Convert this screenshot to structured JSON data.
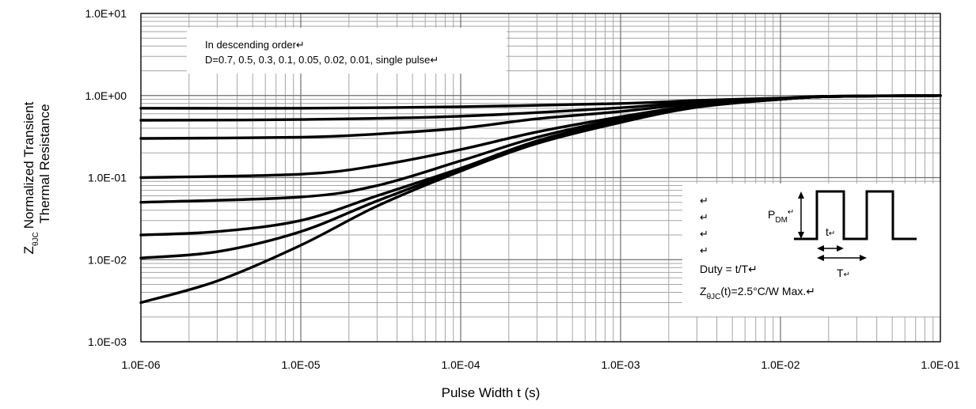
{
  "chart_data": {
    "type": "line",
    "x_scale": "log",
    "y_scale": "log",
    "xlim": [
      1e-06,
      0.1
    ],
    "ylim": [
      0.001,
      10
    ],
    "grid": true,
    "xlabel": "Pulse Width t (s)",
    "ylabel_prefix": "Z",
    "ylabel_sub": "θJC",
    "ylabel_line1": "Normalized Transient",
    "ylabel_line2": "Thermal Resistance",
    "x_ticks": [
      "1.0E-06",
      "1.0E-05",
      "1.0E-04",
      "1.0E-03",
      "1.0E-02",
      "1.0E-01"
    ],
    "y_ticks": [
      "1.0E-03",
      "1.0E-02",
      "1.0E-01",
      "1.0E+00",
      "1.0E+01"
    ],
    "legend": {
      "placement": "top-left",
      "line1": "In descending order↵",
      "line2": "D=0.7, 0.5, 0.3, 0.1, 0.05, 0.02, 0.01, single pulse↵"
    },
    "series": [
      {
        "D": 0.7,
        "x": [
          1e-06,
          1e-05,
          0.0001,
          0.001,
          0.003,
          0.01,
          0.02,
          0.1
        ],
        "y": [
          0.7,
          0.7,
          0.73,
          0.8,
          0.87,
          0.93,
          0.98,
          1.0
        ]
      },
      {
        "D": 0.5,
        "x": [
          1e-06,
          1e-05,
          0.0001,
          0.001,
          0.003,
          0.01,
          0.02,
          0.1
        ],
        "y": [
          0.5,
          0.51,
          0.56,
          0.71,
          0.84,
          0.92,
          0.98,
          1.0
        ]
      },
      {
        "D": 0.3,
        "x": [
          1e-06,
          1e-05,
          3e-05,
          0.0001,
          0.0003,
          0.001,
          0.003,
          0.01,
          0.02,
          0.1
        ],
        "y": [
          0.3,
          0.31,
          0.34,
          0.4,
          0.52,
          0.64,
          0.8,
          0.91,
          0.97,
          1.0
        ]
      },
      {
        "D": 0.1,
        "x": [
          1e-06,
          1e-05,
          3e-05,
          0.0001,
          0.0003,
          0.001,
          0.003,
          0.01,
          0.02,
          0.1
        ],
        "y": [
          0.1,
          0.11,
          0.14,
          0.22,
          0.36,
          0.55,
          0.76,
          0.9,
          0.97,
          1.0
        ]
      },
      {
        "D": 0.05,
        "x": [
          1e-06,
          1e-05,
          3e-05,
          0.0001,
          0.0003,
          0.001,
          0.003,
          0.01,
          0.02,
          0.1
        ],
        "y": [
          0.05,
          0.058,
          0.08,
          0.16,
          0.31,
          0.52,
          0.75,
          0.9,
          0.97,
          1.0
        ]
      },
      {
        "D": 0.02,
        "x": [
          1e-06,
          3e-06,
          1e-05,
          3e-05,
          0.0001,
          0.0003,
          0.001,
          0.003,
          0.01,
          0.02,
          0.1
        ],
        "y": [
          0.02,
          0.022,
          0.03,
          0.06,
          0.13,
          0.28,
          0.5,
          0.74,
          0.9,
          0.97,
          1.0
        ]
      },
      {
        "D": 0.01,
        "x": [
          1e-06,
          3e-06,
          1e-05,
          3e-05,
          0.0001,
          0.0003,
          0.001,
          0.003,
          0.01,
          0.02,
          0.1
        ],
        "y": [
          0.0105,
          0.0125,
          0.022,
          0.052,
          0.125,
          0.27,
          0.49,
          0.73,
          0.9,
          0.97,
          1.0
        ]
      },
      {
        "D": "single pulse",
        "x": [
          1e-06,
          3e-06,
          1e-05,
          3e-05,
          0.0001,
          0.0003,
          0.001,
          0.003,
          0.01,
          0.02,
          0.1
        ],
        "y": [
          0.003,
          0.0055,
          0.015,
          0.045,
          0.12,
          0.26,
          0.47,
          0.72,
          0.9,
          0.97,
          1.0
        ]
      }
    ],
    "inset": {
      "placement": "lower-right",
      "marks": [
        "↵",
        "↵",
        "↵",
        "↵"
      ],
      "pdm_label": "P",
      "pdm_sub": "DM",
      "pdm_mark": "↵",
      "t_label": "t",
      "t_mark": "↵",
      "T_label": "T",
      "T_mark": "↵",
      "duty": "Duty = t/T↵",
      "z_prefix": "Z",
      "z_sub": "θJC",
      "z_rest": "(t)=2.5°C/W Max.↵"
    }
  }
}
